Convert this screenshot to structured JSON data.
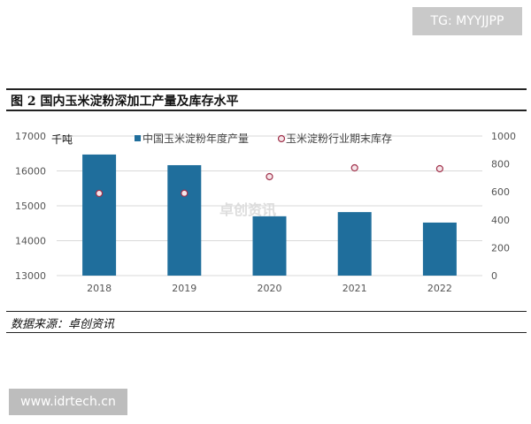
{
  "watermark_top": "TG: MYYJJPP",
  "watermark_bottom": "www.idrtech.cn",
  "source": "数据来源：卓创资讯",
  "chart_watermark": "卓创资讯",
  "chart_data": {
    "type": "bar+scatter",
    "title": "图 2 国内玉米淀粉深加工产量及库存水平",
    "unit_label": "千吨",
    "categories": [
      "2018",
      "2019",
      "2020",
      "2021",
      "2022"
    ],
    "series": [
      {
        "name": "中国玉米淀粉年度产量",
        "type": "bar",
        "axis": "left",
        "color": "#1f6e9c",
        "values": [
          16470,
          16165,
          14700,
          14820,
          14520
        ]
      },
      {
        "name": "玉米淀粉行业期末库存",
        "type": "scatter",
        "axis": "right",
        "color": "#a0304a",
        "values": [
          589,
          590,
          709,
          772,
          766
        ]
      }
    ],
    "y_left": {
      "range": [
        13000,
        17000
      ],
      "ticks": [
        "13000",
        "14000",
        "15000",
        "16000",
        "17000"
      ]
    },
    "y_right": {
      "range": [
        0,
        1000
      ],
      "ticks": [
        "0",
        "200",
        "400",
        "600",
        "800",
        "1000"
      ]
    },
    "grid": true,
    "legend_position": "top"
  }
}
